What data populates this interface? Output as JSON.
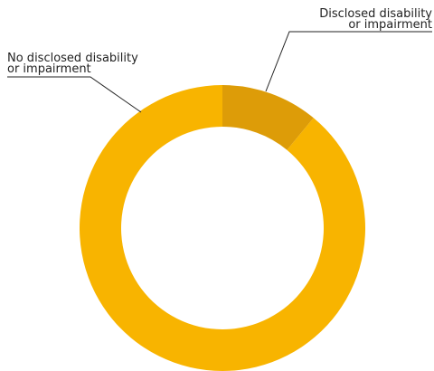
{
  "chart_data": {
    "type": "pie",
    "variant": "donut",
    "title": "",
    "categories": [
      "No disclosed disability or impairment",
      "Disclosed disability or impairment"
    ],
    "values": [
      89,
      11
    ],
    "unit": "percent",
    "legend": "none",
    "labels": [
      {
        "line1": "No disclosed disability",
        "line2": "or impairment"
      },
      {
        "line1": "Disclosed disability",
        "line2": "or impairment"
      }
    ],
    "colors": [
      "#F8B400",
      "#DD9C08"
    ],
    "leader_line_color": "#222222"
  }
}
